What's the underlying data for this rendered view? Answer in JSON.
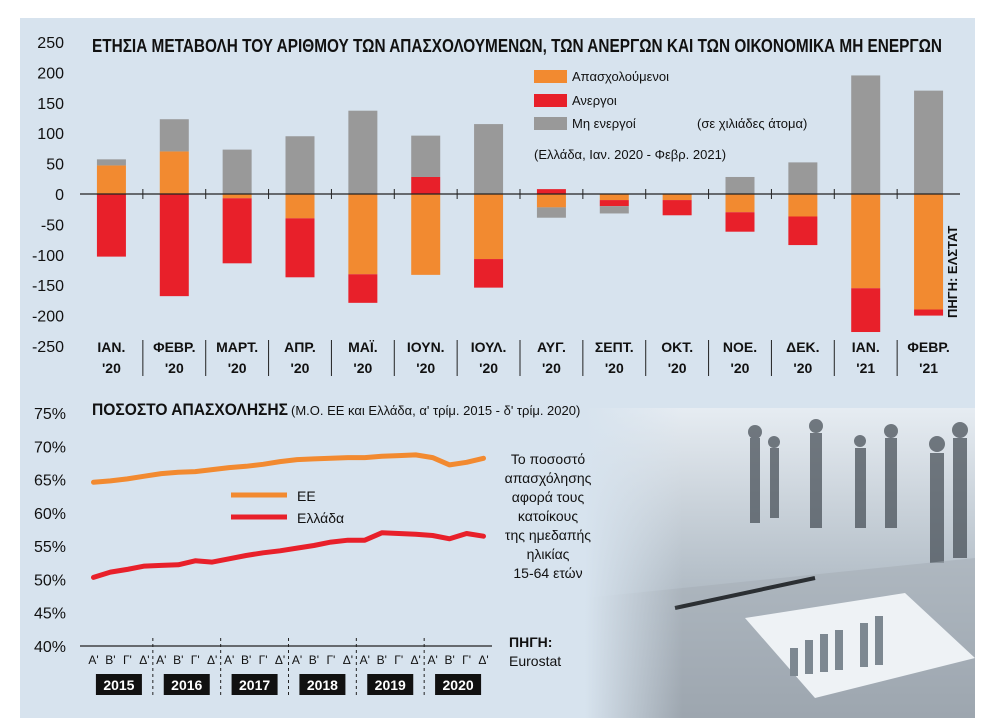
{
  "chart_data": [
    {
      "type": "bar",
      "title": "ΕΤΗΣΙΑ ΜΕΤΑΒΟΛΗ ΤΟΥ ΑΡΙΘΜΟΥ ΤΩΝ ΑΠΑΣΧΟΛΟΥΜΕΝΩΝ, ΤΩΝ ΑΝΕΡΓΩΝ ΚΑΙ ΤΩΝ ΟΙΚΟΝΟΜΙΚΑ ΜΗ ΕΝΕΡΓΩΝ",
      "stacked": true,
      "categories": [
        {
          "month": "ΙΑΝ.",
          "year": "'20"
        },
        {
          "month": "ΦΕΒΡ.",
          "year": "'20"
        },
        {
          "month": "ΜΑΡΤ.",
          "year": "'20"
        },
        {
          "month": "ΑΠΡ.",
          "year": "'20"
        },
        {
          "month": "ΜΑΪ.",
          "year": "'20"
        },
        {
          "month": "ΙΟΥΝ.",
          "year": "'20"
        },
        {
          "month": "ΙΟΥΛ.",
          "year": "'20"
        },
        {
          "month": "ΑΥΓ.",
          "year": "'20"
        },
        {
          "month": "ΣΕΠΤ.",
          "year": "'20"
        },
        {
          "month": "ΟΚΤ.",
          "year": "'20"
        },
        {
          "month": "ΝΟΕ.",
          "year": "'20"
        },
        {
          "month": "ΔΕΚ.",
          "year": "'20"
        },
        {
          "month": "ΙΑΝ.",
          "year": "'21"
        },
        {
          "month": "ΦΕΒΡ.",
          "year": "'21"
        }
      ],
      "series": [
        {
          "name": "Απασχολούμενοι",
          "color": "#f28a30",
          "values": [
            47,
            70,
            -7,
            -40,
            -132,
            -133,
            -107,
            -22,
            -10,
            -10,
            -30,
            -37,
            -155,
            -190
          ]
        },
        {
          "name": "Ανεργοι",
          "color": "#e8202a",
          "values": [
            -103,
            -168,
            -107,
            -97,
            -47,
            28,
            -47,
            8,
            -10,
            -25,
            -32,
            -47,
            -72,
            -10
          ]
        },
        {
          "name": "Μη ενεργοί",
          "color": "#999999",
          "values": [
            10,
            53,
            73,
            95,
            137,
            68,
            115,
            -17,
            -12,
            0,
            28,
            52,
            195,
            170
          ]
        }
      ],
      "ylim": [
        -250,
        250
      ],
      "yticks": [
        "250",
        "200",
        "150",
        "100",
        "50",
        "0",
        "-50",
        "-100",
        "-150",
        "-200",
        "-250"
      ],
      "grid": false,
      "legend_position": "top-right",
      "unit_note": "(σε χιλιάδες άτομα)",
      "period_note": "(Ελλάδα, Ιαν. 2020 - Φεβρ. 2021)",
      "source": "ΠΗΓΗ: ΕΛΣΤΑΤ"
    },
    {
      "type": "line",
      "title": "ΠΟΣΟΣΤΟ ΑΠΑΣΧΟΛΗΣΗΣ",
      "subtitle": "(Μ.Ο. ΕΕ και Ελλάδα, α' τρίμ. 2015 - δ' τρίμ. 2020)",
      "quarters": [
        "Α'",
        "Β'",
        "Γ'",
        "Δ'"
      ],
      "years": [
        "2015",
        "2016",
        "2017",
        "2018",
        "2019",
        "2020"
      ],
      "series": [
        {
          "name": "ΕΕ",
          "color": "#f28a30",
          "values": [
            64.6,
            64.8,
            65.1,
            65.5,
            65.9,
            66.1,
            66.2,
            66.5,
            66.8,
            67.0,
            67.3,
            67.7,
            68.0,
            68.1,
            68.2,
            68.3,
            68.3,
            68.5,
            68.6,
            68.7,
            68.3,
            67.2,
            67.6,
            68.2
          ]
        },
        {
          "name": "Ελλάδα",
          "color": "#e8202a",
          "values": [
            50.3,
            51.1,
            51.5,
            52.0,
            52.1,
            52.2,
            52.8,
            52.6,
            53.1,
            53.6,
            54.0,
            54.3,
            54.7,
            55.1,
            55.6,
            55.9,
            55.9,
            57.0,
            56.9,
            56.8,
            56.6,
            56.1,
            56.9,
            56.5
          ]
        }
      ],
      "ylim": [
        40,
        75
      ],
      "yticks": [
        "75%",
        "70%",
        "65%",
        "60%",
        "55%",
        "50%",
        "45%",
        "40%"
      ],
      "legend_position": "center-left",
      "note": [
        "Το ποσοστό",
        "απασχόλησης",
        "αφορά τους",
        "κατοίκους",
        "της ημεδαπής",
        "ηλικίας",
        "15-64 ετών"
      ],
      "source_label": "ΠΗΓΗ:",
      "source_name": "Eurostat"
    }
  ]
}
